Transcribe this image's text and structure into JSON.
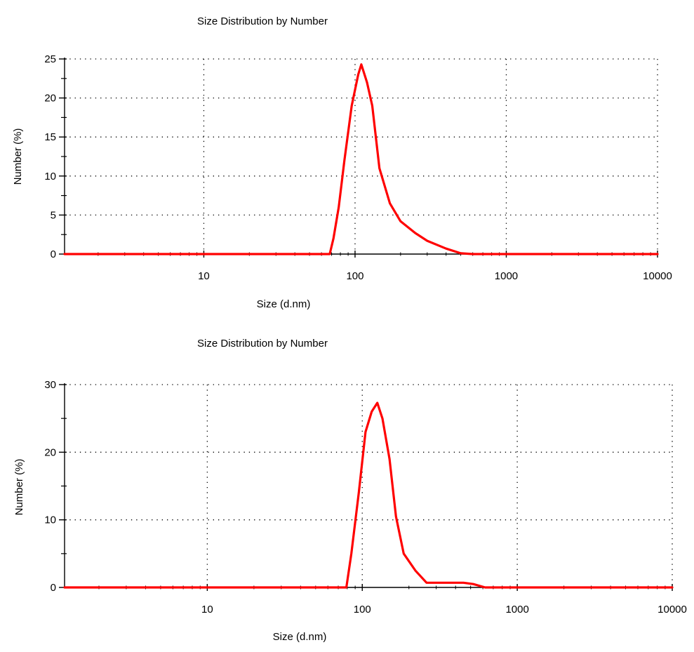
{
  "colors": {
    "series": "#ff0000",
    "axis": "#000000",
    "grid": "#000000",
    "background": "#ffffff"
  },
  "chart_data": [
    {
      "type": "line",
      "title": "Size Distribution by Number",
      "xlabel": "Size (d.nm)",
      "ylabel": "Number (%)",
      "xscale": "log",
      "xlim": [
        1.2,
        10000
      ],
      "ylim": [
        0,
        25
      ],
      "xticks": [
        10,
        100,
        1000,
        10000
      ],
      "xtick_labels": [
        "10",
        "100",
        "1000",
        "10000"
      ],
      "yticks": [
        0,
        5,
        10,
        15,
        20,
        25
      ],
      "ytick_labels": [
        "0",
        "5",
        "10",
        "15",
        "20",
        "25"
      ],
      "grid": true,
      "legend": "none",
      "series": [
        {
          "x": [
            1.2,
            10,
            50,
            68,
            72,
            78,
            85,
            95,
            105,
            110,
            120,
            130,
            145,
            170,
            200,
            250,
            300,
            400,
            500,
            600,
            1000,
            10000
          ],
          "y": [
            0,
            0,
            0,
            0,
            2,
            6,
            12,
            19,
            23,
            24.3,
            22,
            19,
            11,
            6.5,
            4.2,
            2.7,
            1.7,
            0.7,
            0.1,
            0,
            0,
            0
          ]
        }
      ]
    },
    {
      "type": "line",
      "title": "Size Distribution by Number",
      "xlabel": "Size (d.nm)",
      "ylabel": "Number (%)",
      "xscale": "log",
      "xlim": [
        1.2,
        10000
      ],
      "ylim": [
        0,
        30
      ],
      "xticks": [
        10,
        100,
        1000,
        10000
      ],
      "xtick_labels": [
        "10",
        "100",
        "1000",
        "10000"
      ],
      "yticks": [
        0,
        10,
        20,
        30
      ],
      "ytick_labels": [
        "0",
        "10",
        "20",
        "30"
      ],
      "grid": true,
      "legend": "none",
      "series": [
        {
          "x": [
            1.2,
            10,
            60,
            79,
            85,
            95,
            105,
            115,
            125,
            135,
            150,
            165,
            185,
            220,
            260,
            350,
            450,
            520,
            620,
            1000,
            10000
          ],
          "y": [
            0,
            0,
            0,
            0,
            5,
            14,
            23,
            26,
            27.3,
            25,
            19,
            10.5,
            5,
            2.5,
            0.7,
            0.7,
            0.7,
            0.5,
            0,
            0,
            0
          ]
        }
      ]
    }
  ]
}
